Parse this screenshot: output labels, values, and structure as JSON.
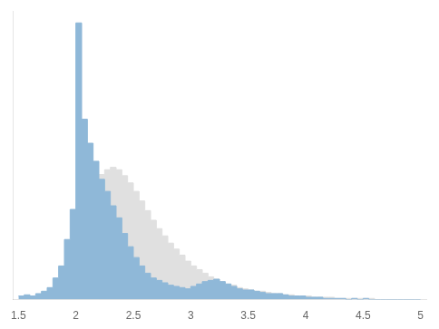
{
  "chart_data": {
    "type": "histogram",
    "series": [
      {
        "color": "#e0e0e0",
        "bins": [
          2.2,
          2.25,
          2.3,
          2.35,
          2.4,
          2.45,
          2.5,
          2.55,
          2.6,
          2.65,
          2.7,
          2.75,
          2.8,
          2.85,
          2.9,
          2.95,
          3.0,
          3.05,
          3.1,
          3.15,
          3.2,
          3.25,
          3.3,
          3.35,
          3.4,
          3.45,
          3.5,
          3.55,
          3.6,
          3.65,
          3.7,
          3.75,
          3.8,
          3.85,
          3.9,
          3.95,
          4.0,
          4.05,
          4.1,
          4.15,
          4.2,
          4.25,
          4.3,
          4.35,
          4.4,
          4.45,
          4.5,
          4.55,
          4.6,
          4.65,
          4.7,
          4.75,
          4.8,
          4.85,
          4.9,
          4.95,
          5.0
        ],
        "values": [
          104,
          108,
          110,
          108,
          103,
          97,
          90,
          82,
          74,
          66,
          59,
          53,
          47,
          42,
          37,
          32,
          28,
          25,
          22,
          19,
          17,
          15,
          13,
          12,
          10,
          9,
          8,
          7,
          7,
          6,
          5,
          5,
          4,
          4,
          3,
          3,
          3,
          2,
          2,
          2,
          2,
          1,
          1,
          1,
          1,
          1,
          1,
          1,
          0,
          0,
          0,
          0,
          0,
          0,
          0,
          0
        ]
      },
      {
        "color": "#8fb8d8",
        "bins": [
          1.5,
          1.55,
          1.6,
          1.65,
          1.7,
          1.75,
          1.8,
          1.85,
          1.9,
          1.95,
          2.0,
          2.05,
          2.1,
          2.15,
          2.2,
          2.25,
          2.3,
          2.35,
          2.4,
          2.45,
          2.5,
          2.55,
          2.6,
          2.65,
          2.7,
          2.75,
          2.8,
          2.85,
          2.9,
          2.95,
          3.0,
          3.05,
          3.1,
          3.15,
          3.2,
          3.25,
          3.3,
          3.35,
          3.4,
          3.45,
          3.5,
          3.55,
          3.6,
          3.65,
          3.7,
          3.75,
          3.8,
          3.85,
          3.9,
          3.95,
          4.0,
          4.05,
          4.1,
          4.15,
          4.2,
          4.25,
          4.3,
          4.35,
          4.4,
          4.45,
          4.5,
          4.55,
          4.6,
          4.65,
          4.7,
          4.75,
          4.8,
          4.85,
          4.9,
          4.95,
          5.0
        ],
        "values": [
          3,
          4,
          3,
          5,
          7,
          10,
          18,
          28,
          50,
          75,
          230,
          150,
          130,
          115,
          100,
          90,
          78,
          68,
          55,
          44,
          35,
          28,
          22,
          18,
          16,
          14,
          12,
          11,
          10,
          9,
          11,
          13,
          15,
          16,
          17,
          15,
          13,
          11,
          9,
          8,
          8,
          7,
          6,
          5,
          5,
          5,
          4,
          3,
          3,
          3,
          2,
          2,
          2,
          1,
          1,
          1,
          1,
          0,
          1,
          0,
          1,
          0,
          0,
          0,
          0,
          0,
          0,
          0,
          0,
          0
        ]
      }
    ],
    "xlim": [
      1.45,
      5.05
    ],
    "xticks": [
      1.5,
      2,
      2.5,
      3,
      3.5,
      4,
      4.5,
      5
    ],
    "ylim": [
      0,
      240
    ],
    "grid": false,
    "tick_labels": "x"
  }
}
